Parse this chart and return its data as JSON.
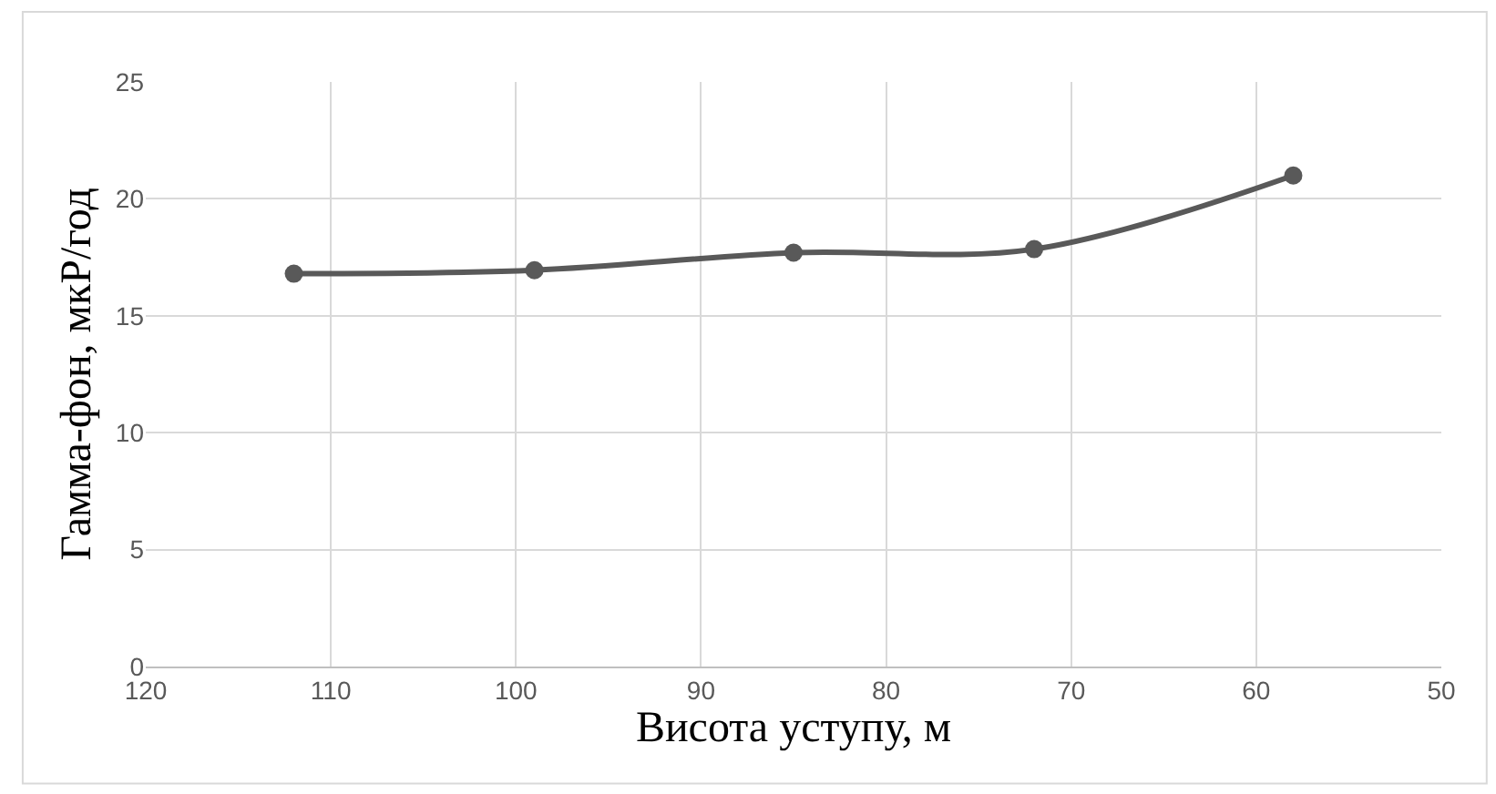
{
  "chart_data": {
    "type": "line",
    "xlabel": "Висота уступу, м",
    "ylabel": "Гамма-фон, мкР/год",
    "x": [
      112,
      99,
      85,
      72,
      58
    ],
    "series": [
      {
        "color": "#595959",
        "values": [
          16.8,
          16.95,
          17.7,
          17.85,
          21.0
        ]
      }
    ],
    "xlim": [
      120,
      50
    ],
    "xticks": [
      120,
      110,
      100,
      90,
      80,
      70,
      60,
      50
    ],
    "ylim": [
      0,
      25
    ],
    "yticks": [
      0,
      5,
      10,
      15,
      20,
      25
    ],
    "grid": true,
    "marker": "circle",
    "line_style": "solid"
  }
}
